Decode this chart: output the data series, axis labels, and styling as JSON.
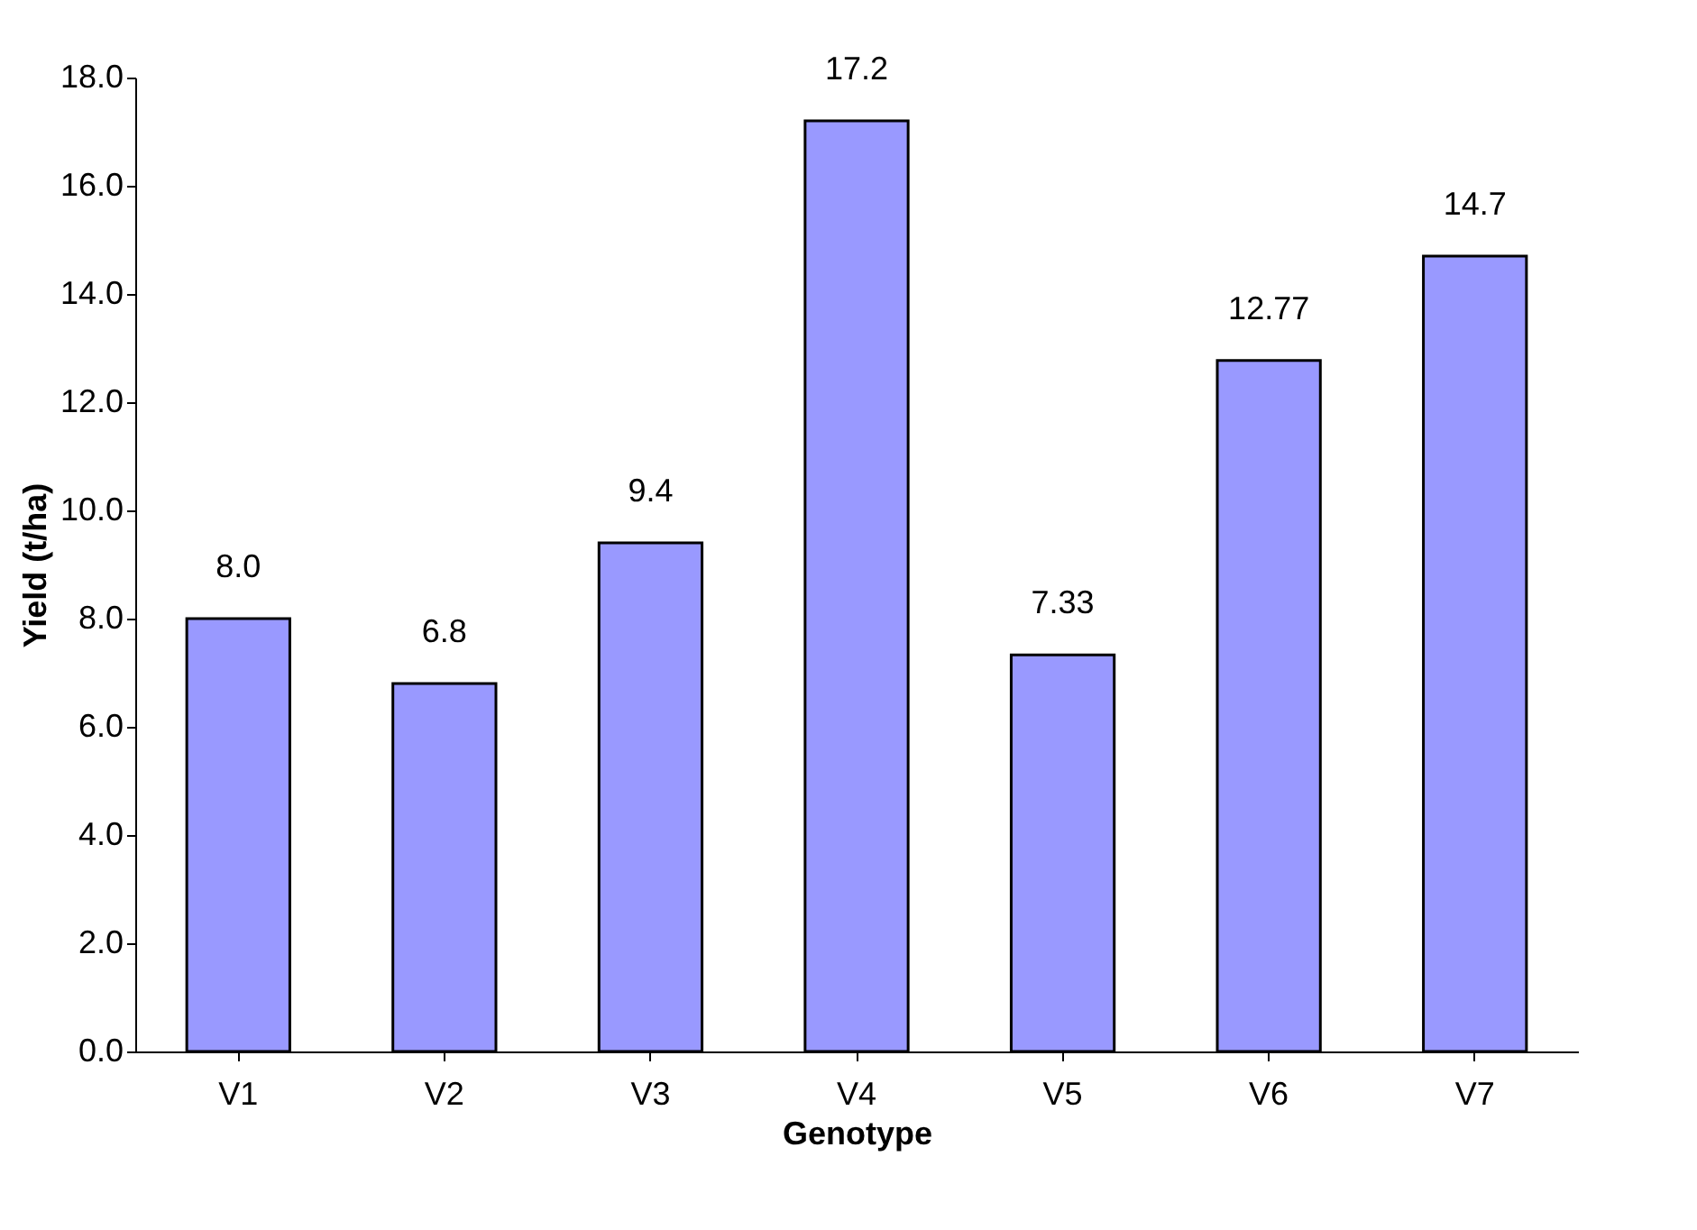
{
  "chart_data": {
    "type": "bar",
    "xlabel": "Genotype",
    "ylabel": "Yield (t/ha)",
    "categories": [
      "V1",
      "V2",
      "V3",
      "V4",
      "V5",
      "V6",
      "V7"
    ],
    "values": [
      8.0,
      6.8,
      9.4,
      17.2,
      7.33,
      12.77,
      14.7
    ],
    "value_labels": [
      "8.0",
      "6.8",
      "9.4",
      "17.2",
      "7.33",
      "12.77",
      "14.7"
    ],
    "color": "#9999ff",
    "ylim": [
      0,
      18
    ],
    "yticks": [
      {
        "value": 0,
        "label": "0.0"
      },
      {
        "value": 2,
        "label": "2.0"
      },
      {
        "value": 4,
        "label": "4.0"
      },
      {
        "value": 6,
        "label": "6.0"
      },
      {
        "value": 8,
        "label": "8.0"
      },
      {
        "value": 10,
        "label": "10.0"
      },
      {
        "value": 12,
        "label": "12.0"
      },
      {
        "value": 14,
        "label": "14.0"
      },
      {
        "value": 16,
        "label": "16.0"
      },
      {
        "value": 18,
        "label": "18.0"
      }
    ]
  }
}
